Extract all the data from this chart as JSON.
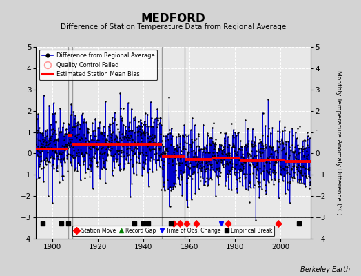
{
  "title": "MEDFORD",
  "subtitle": "Difference of Station Temperature Data from Regional Average",
  "ylabel_right": "Monthly Temperature Anomaly Difference (°C)",
  "credit": "Berkeley Earth",
  "xlim": [
    1893,
    2013
  ],
  "ylim": [
    -4,
    5
  ],
  "yticks": [
    -4,
    -3,
    -2,
    -1,
    0,
    1,
    2,
    3,
    4,
    5
  ],
  "xticks": [
    1900,
    1920,
    1940,
    1960,
    1980,
    2000
  ],
  "bg_color": "#d3d3d3",
  "plot_bg_color": "#e8e8e8",
  "grid_color": "white",
  "line_color": "#0000cc",
  "dot_color": "#000000",
  "bias_color": "#ff0000",
  "vertical_line_color": "#888888",
  "vertical_lines": [
    1907,
    1909,
    1948,
    1958
  ],
  "bias_segments": [
    {
      "x": [
        1893,
        1907
      ],
      "y": [
        0.22,
        0.22
      ]
    },
    {
      "x": [
        1907,
        1909
      ],
      "y": [
        0.85,
        0.85
      ]
    },
    {
      "x": [
        1909,
        1948
      ],
      "y": [
        0.42,
        0.42
      ]
    },
    {
      "x": [
        1948,
        1958
      ],
      "y": [
        -0.15,
        -0.15
      ]
    },
    {
      "x": [
        1958,
        1970
      ],
      "y": [
        -0.28,
        -0.28
      ]
    },
    {
      "x": [
        1970,
        1982
      ],
      "y": [
        -0.2,
        -0.2
      ]
    },
    {
      "x": [
        1982,
        1993
      ],
      "y": [
        -0.35,
        -0.35
      ]
    },
    {
      "x": [
        1993,
        2002
      ],
      "y": [
        -0.3,
        -0.3
      ]
    },
    {
      "x": [
        2002,
        2013
      ],
      "y": [
        -0.38,
        -0.38
      ]
    }
  ],
  "station_moves": [
    1953,
    1956,
    1959,
    1963,
    1977,
    1999
  ],
  "empirical_breaks": [
    1896,
    1904,
    1907,
    1936,
    1940,
    1942,
    1952,
    2008
  ],
  "obs_change_markers": [
    1974
  ],
  "record_gaps": [],
  "marker_y": -3.3,
  "noise_std": 0.75,
  "seed": 17
}
